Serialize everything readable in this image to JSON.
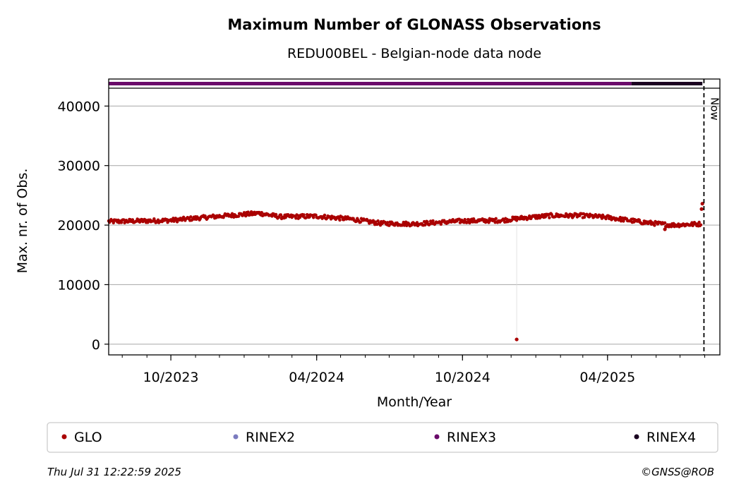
{
  "title": "Maximum Number of GLONASS Observations",
  "subtitle": "REDU00BEL - Belgian-node data node",
  "footer": {
    "timestamp": "Thu Jul 31 12:22:59 2025",
    "copyright": "©GNSS@ROB"
  },
  "colors": {
    "glo": "#aa0000",
    "rinex2": "#7b7bbf",
    "rinex3": "#6a0a6a",
    "rinex4": "#1a0020",
    "grid": "#b0b0b0",
    "axis": "#000000"
  },
  "chart_data": {
    "type": "scatter",
    "xlabel": "Month/Year",
    "ylabel": "Max. nr. of Obs.",
    "x_range": [
      "2023-07-15",
      "2025-08-20"
    ],
    "ylim": [
      -1800,
      43000
    ],
    "y_ticks": [
      0,
      10000,
      20000,
      30000,
      40000
    ],
    "x_tick_labels": [
      {
        "date": "2023-10-01",
        "label": "10/2023"
      },
      {
        "date": "2024-04-01",
        "label": "04/2024"
      },
      {
        "date": "2024-10-01",
        "label": "10/2024"
      },
      {
        "date": "2025-04-01",
        "label": "04/2025"
      }
    ],
    "grid": "horizontal",
    "now_line": {
      "date": "2025-07-31",
      "label": "Now"
    },
    "legend_position": "bottom",
    "series": [
      {
        "name": "GLO",
        "color": "#aa0000",
        "profile": [
          {
            "date": "2023-07-15",
            "value": 20600
          },
          {
            "date": "2023-10-01",
            "value": 20800
          },
          {
            "date": "2023-12-01",
            "value": 21500
          },
          {
            "date": "2024-01-20",
            "value": 22000
          },
          {
            "date": "2024-02-15",
            "value": 21400
          },
          {
            "date": "2024-04-01",
            "value": 21500
          },
          {
            "date": "2024-05-15",
            "value": 21000
          },
          {
            "date": "2024-06-20",
            "value": 20300
          },
          {
            "date": "2024-08-01",
            "value": 20200
          },
          {
            "date": "2024-10-01",
            "value": 20700
          },
          {
            "date": "2024-11-20",
            "value": 20800
          },
          {
            "date": "2024-12-15",
            "value": 21200
          },
          {
            "date": "2025-01-20",
            "value": 21600
          },
          {
            "date": "2025-03-01",
            "value": 21600
          },
          {
            "date": "2025-04-01",
            "value": 21300
          },
          {
            "date": "2025-05-15",
            "value": 20500
          },
          {
            "date": "2025-06-20",
            "value": 20000
          },
          {
            "date": "2025-07-27",
            "value": 20200
          }
        ],
        "outliers": [
          {
            "date": "2024-12-08",
            "value": 800
          },
          {
            "date": "2025-07-28",
            "value": 22700
          },
          {
            "date": "2025-07-29",
            "value": 23600
          },
          {
            "date": "2025-06-12",
            "value": 19300
          }
        ]
      }
    ],
    "rinex_strip": [
      {
        "name": "RINEX3",
        "from": "2023-07-15",
        "to": "2025-05-01",
        "color": "#6a0a6a"
      },
      {
        "name": "RINEX4",
        "from": "2025-05-01",
        "to": "2025-07-29",
        "color": "#1a0020"
      }
    ],
    "legend": [
      {
        "name": "GLO",
        "color": "#aa0000"
      },
      {
        "name": "RINEX2",
        "color": "#7b7bbf"
      },
      {
        "name": "RINEX3",
        "color": "#6a0a6a"
      },
      {
        "name": "RINEX4",
        "color": "#1a0020"
      }
    ]
  }
}
